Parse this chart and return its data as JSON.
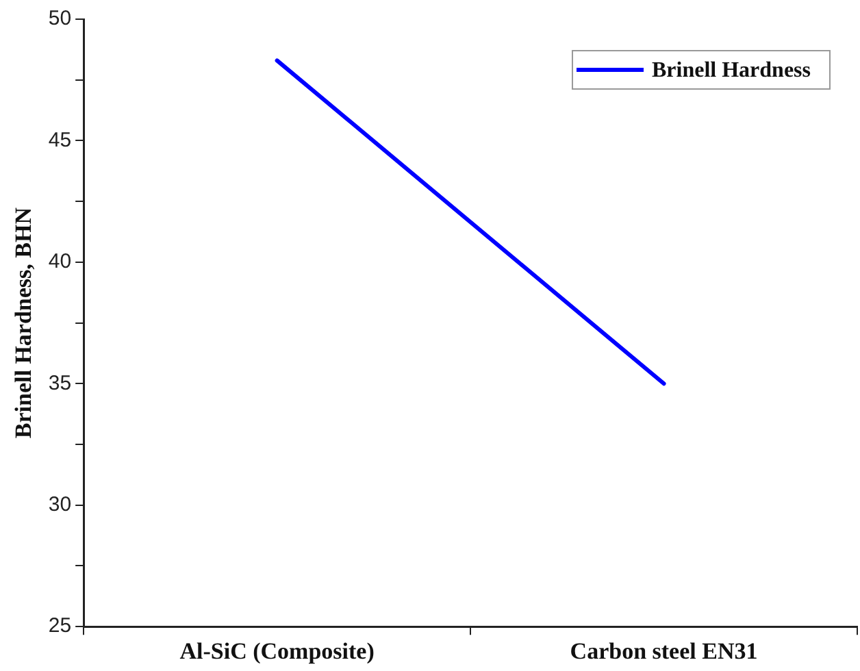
{
  "chart_data": {
    "type": "line",
    "ylabel": "Brinell Hardness, BHN",
    "categories": [
      "Al-SiC (Composite)",
      "Carbon steel EN31"
    ],
    "series": [
      {
        "name": "Brinell Hardness",
        "color": "#0000ff",
        "values": [
          48.3,
          35
        ]
      }
    ],
    "ylim": [
      25,
      50
    ],
    "yticks": [
      25,
      {
        "value": 27.5,
        "label": null
      },
      30,
      {
        "value": 32.5,
        "label": null
      },
      35,
      {
        "value": 37.5,
        "label": null
      },
      40,
      {
        "value": 42.5,
        "label": null
      },
      45,
      {
        "value": 47.5,
        "label": null
      },
      50
    ],
    "grid": false,
    "legend": "top right",
    "marker": "none",
    "line_style": "solid"
  }
}
